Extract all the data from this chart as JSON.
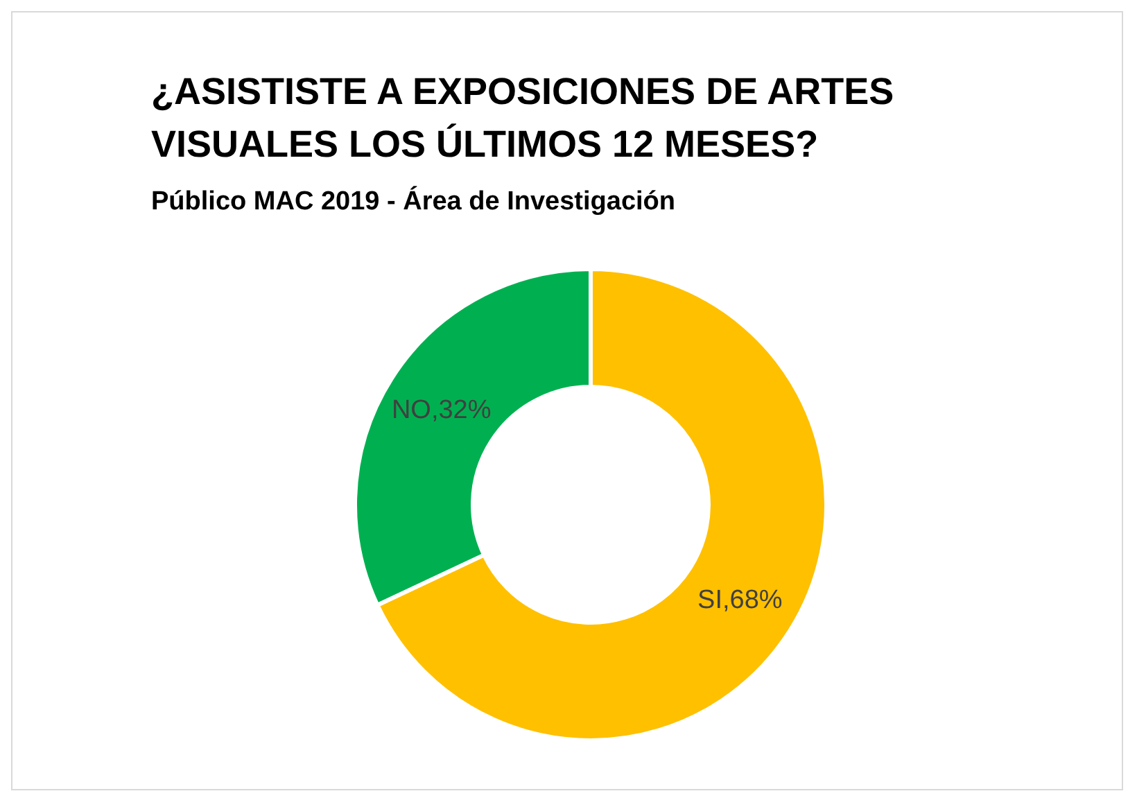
{
  "chart_data": {
    "type": "donut",
    "title": "¿ASISTISTE A EXPOSICIONES DE ARTES VISUALES LOS ÚLTIMOS 12 MESES?",
    "subtitle": "Público MAC 2019 - Área de Investigación",
    "categories": [
      "SI",
      "NO"
    ],
    "values": [
      68,
      32
    ],
    "colors": [
      "#ffc000",
      "#00b050"
    ],
    "value_labels": [
      ",68%",
      ",32%"
    ],
    "legend": false
  }
}
